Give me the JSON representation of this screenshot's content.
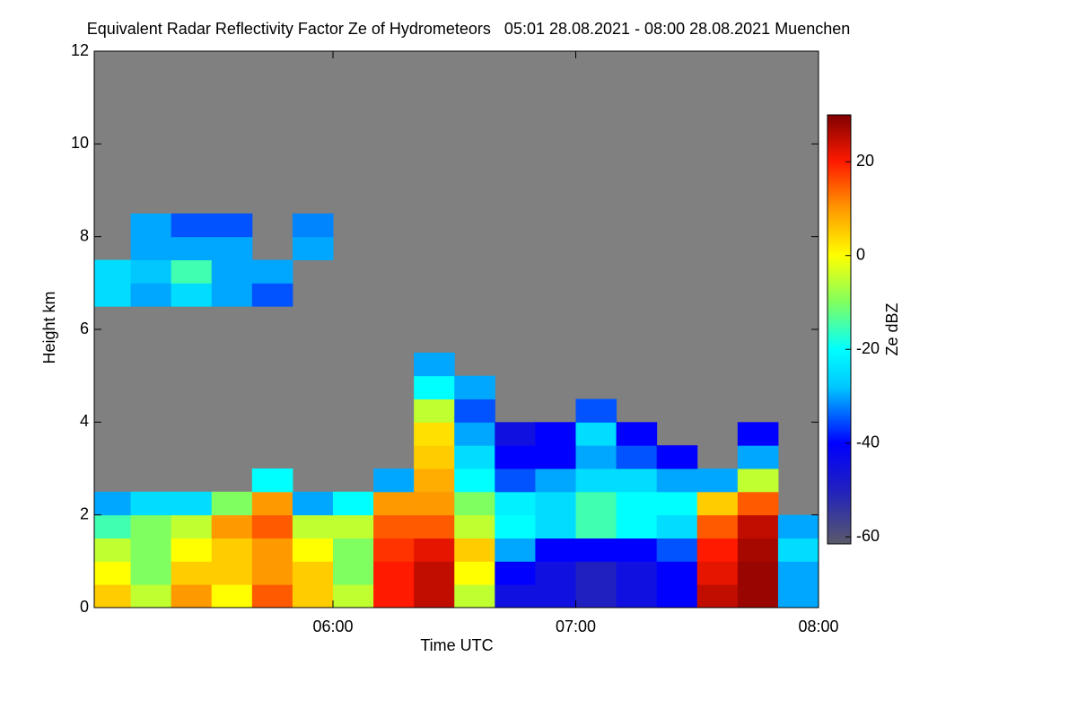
{
  "chart_data": {
    "type": "heatmap",
    "title": "Equivalent Radar Reflectivity Factor Ze of Hydrometeors   05:01 28.08.2021 - 08:00 28.08.2021 Muenchen",
    "xlabel": "Time UTC",
    "ylabel": "Height km",
    "colorbar_label": "Ze dBZ",
    "xlim": [
      1,
      180
    ],
    "xticks": [
      {
        "value": 60,
        "label": "06:00"
      },
      {
        "value": 120,
        "label": "07:00"
      },
      {
        "value": 180,
        "label": "08:00"
      }
    ],
    "ylim": [
      0,
      12
    ],
    "yticks": [
      0,
      2,
      4,
      6,
      8,
      10,
      12
    ],
    "clim": [
      -61.5,
      30
    ],
    "cticks": [
      20,
      0,
      -20,
      -40,
      -60
    ],
    "background_color": "#808080",
    "colorscale": [
      [
        -61.5,
        "#5a5a6a"
      ],
      [
        -50,
        "#2020c0"
      ],
      [
        -40,
        "#0000ff"
      ],
      [
        -28,
        "#00c8ff"
      ],
      [
        -20,
        "#00ffff"
      ],
      [
        -10,
        "#80ff60"
      ],
      [
        0,
        "#ffff00"
      ],
      [
        10,
        "#ff9900"
      ],
      [
        20,
        "#ff1a00"
      ],
      [
        30,
        "#800000"
      ]
    ],
    "x": [
      5,
      15,
      25,
      35,
      45,
      55,
      65,
      75,
      85,
      95,
      105,
      115,
      125,
      135,
      145,
      155,
      165,
      175
    ],
    "y": [
      0.25,
      0.75,
      1.25,
      1.75,
      2.25,
      2.75,
      3.25,
      3.75,
      4.25,
      4.75,
      5.25,
      5.75,
      6.25,
      6.75,
      7.25,
      7.75,
      8.25,
      8.75
    ],
    "z": [
      [
        5,
        -5,
        10,
        0,
        15,
        5,
        -5,
        20,
        25,
        -5,
        -45,
        -45,
        -50,
        -45,
        -40,
        25,
        28,
        -30
      ],
      [
        0,
        -10,
        5,
        5,
        10,
        5,
        -10,
        20,
        25,
        0,
        -40,
        -45,
        -50,
        -45,
        -40,
        22,
        28,
        -30
      ],
      [
        -5,
        -10,
        0,
        5,
        10,
        0,
        -10,
        18,
        22,
        5,
        -30,
        -40,
        -40,
        -40,
        -35,
        20,
        27,
        -25
      ],
      [
        -15,
        -10,
        -5,
        10,
        15,
        -5,
        -5,
        15,
        15,
        -5,
        -20,
        -25,
        -15,
        -20,
        -25,
        15,
        25,
        -30
      ],
      [
        -30,
        -25,
        -25,
        -10,
        10,
        -30,
        -20,
        10,
        10,
        -10,
        -22,
        -25,
        -15,
        -20,
        -20,
        5,
        15,
        null
      ],
      [
        null,
        null,
        null,
        null,
        -20,
        null,
        null,
        -30,
        8,
        -20,
        -35,
        -30,
        -25,
        -25,
        -30,
        -30,
        -5,
        null
      ],
      [
        null,
        null,
        null,
        null,
        null,
        null,
        null,
        null,
        5,
        -25,
        -40,
        -40,
        -30,
        -35,
        -40,
        null,
        -30,
        null
      ],
      [
        null,
        null,
        null,
        null,
        null,
        null,
        null,
        null,
        3,
        -30,
        -45,
        -40,
        -25,
        -40,
        null,
        null,
        -40,
        null
      ],
      [
        null,
        null,
        null,
        null,
        null,
        null,
        null,
        null,
        -5,
        -35,
        null,
        null,
        -35,
        null,
        null,
        null,
        null,
        null
      ],
      [
        null,
        null,
        null,
        null,
        null,
        null,
        null,
        null,
        -20,
        -30,
        null,
        null,
        null,
        null,
        null,
        null,
        null,
        null
      ],
      [
        null,
        null,
        null,
        null,
        null,
        null,
        null,
        null,
        -30,
        null,
        null,
        null,
        null,
        null,
        null,
        null,
        null,
        null
      ],
      [
        null,
        null,
        null,
        null,
        null,
        null,
        null,
        null,
        null,
        null,
        null,
        null,
        null,
        null,
        null,
        null,
        null,
        null
      ],
      [
        null,
        null,
        null,
        null,
        null,
        null,
        null,
        null,
        null,
        null,
        null,
        null,
        null,
        null,
        null,
        null,
        null,
        null
      ],
      [
        -25,
        -30,
        -25,
        -30,
        -35,
        null,
        null,
        null,
        null,
        null,
        null,
        null,
        null,
        null,
        null,
        null,
        null,
        null
      ],
      [
        -25,
        -28,
        -15,
        -30,
        -30,
        null,
        null,
        null,
        null,
        null,
        null,
        null,
        null,
        null,
        null,
        null,
        null,
        null
      ],
      [
        null,
        -30,
        -30,
        -30,
        null,
        -30,
        null,
        null,
        null,
        null,
        null,
        null,
        null,
        null,
        null,
        null,
        null,
        null
      ],
      [
        null,
        -30,
        -35,
        -35,
        null,
        -32,
        null,
        null,
        null,
        null,
        null,
        null,
        null,
        null,
        null,
        null,
        null,
        null
      ],
      [
        null,
        null,
        null,
        null,
        null,
        null,
        null,
        null,
        null,
        null,
        null,
        null,
        null,
        null,
        null,
        null,
        null,
        null
      ]
    ]
  }
}
